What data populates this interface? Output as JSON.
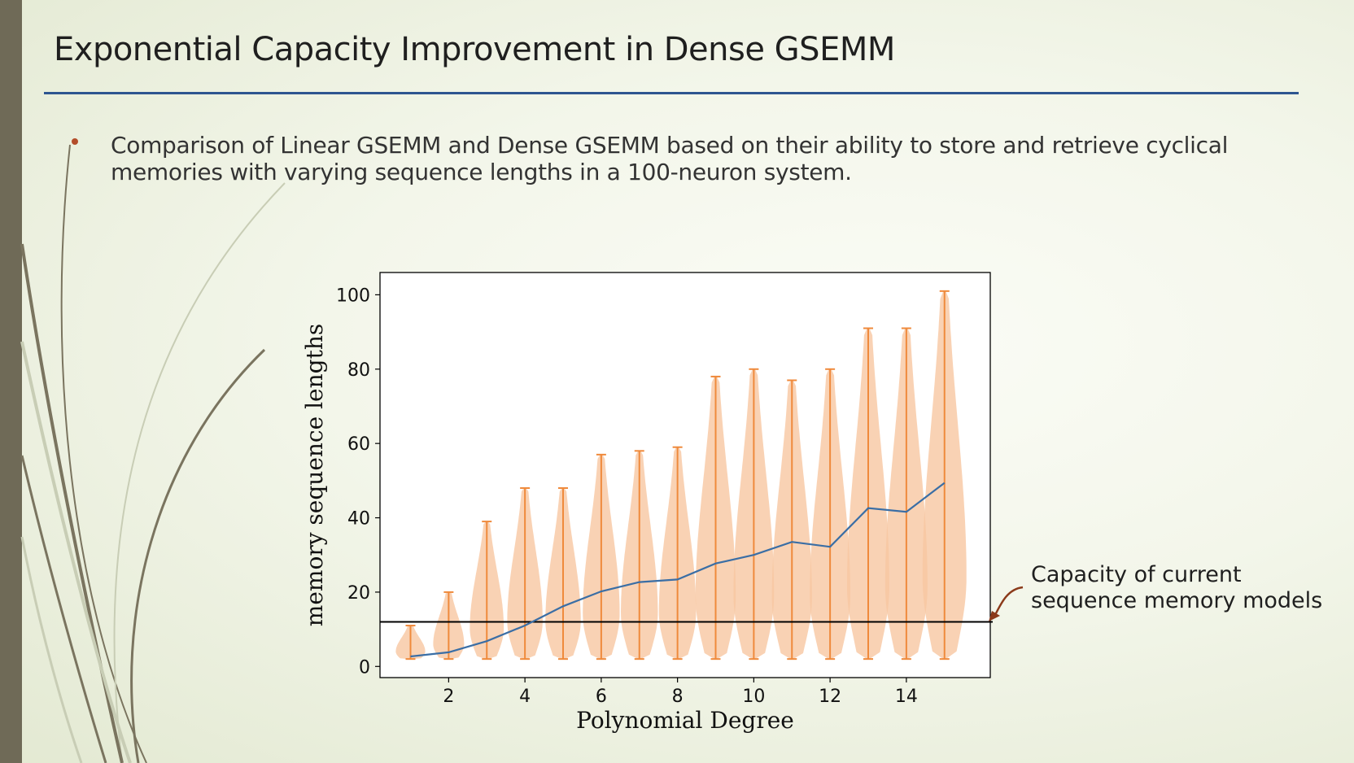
{
  "slide": {
    "title": "Exponential Capacity Improvement in Dense GSEMM",
    "bullet": "Comparison of Linear GSEMM and Dense GSEMM based on their ability to store and retrieve cyclical memories with varying sequence lengths in a 100-neuron system.",
    "annotation_line1": "Capacity of current",
    "annotation_line2": "sequence memory models"
  },
  "colors": {
    "title_rule": "#2e5590",
    "bullet": "#b34d2a",
    "mean_line": "#3a6ea5",
    "violin_fill": "#f7c7a1",
    "violin_bars": "#ef8a3c",
    "threshold": "#000000",
    "arrow": "#8b3a1a"
  },
  "chart_data": {
    "type": "violin",
    "xlabel": "Polynomial Degree",
    "ylabel": "memory sequence lengths",
    "xlim": [
      0.2,
      16.2
    ],
    "ylim": [
      -3,
      106
    ],
    "xticks": [
      2,
      4,
      6,
      8,
      10,
      12,
      14
    ],
    "yticks": [
      0,
      20,
      40,
      60,
      80,
      100
    ],
    "degrees": [
      1,
      2,
      3,
      4,
      5,
      6,
      7,
      8,
      9,
      10,
      11,
      12,
      13,
      14,
      15
    ],
    "min": [
      2,
      2,
      2,
      2,
      2,
      2,
      2,
      2,
      2,
      2,
      2,
      2,
      2,
      2,
      2
    ],
    "max": [
      11,
      20,
      39,
      48,
      48,
      57,
      58,
      59,
      78,
      80,
      77,
      80,
      91,
      91,
      101
    ],
    "mean": [
      2.7,
      3.8,
      6.8,
      11,
      16.2,
      20.2,
      22.7,
      23.4,
      27.7,
      30,
      33.5,
      32.2,
      42.6,
      41.6,
      49.4
    ],
    "threshold": 12
  }
}
